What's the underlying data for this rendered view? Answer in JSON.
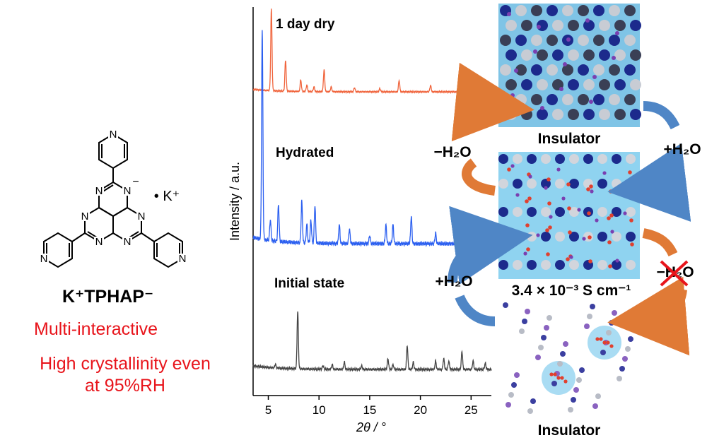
{
  "compound": {
    "name": "K⁺TPHAP⁻",
    "counter_ion": "• K⁺",
    "charge": "−",
    "atom_N": "N"
  },
  "features": {
    "line1": "Multi-interactive",
    "line2a": "High crystallinity even",
    "line2b": "at 95%RH"
  },
  "chart_data": {
    "type": "line",
    "title": "",
    "xlabel": "2θ / °",
    "ylabel": "Intensity / a.u.",
    "xlim": [
      3.5,
      27
    ],
    "xticks": [
      5,
      10,
      15,
      20,
      25
    ],
    "grid": false,
    "series": [
      {
        "name": "1 day dry",
        "color": "#f0643c",
        "peaks": [
          [
            5.3,
            100
          ],
          [
            6.7,
            38
          ],
          [
            8.2,
            14
          ],
          [
            8.8,
            8
          ],
          [
            9.5,
            6
          ],
          [
            10.5,
            27
          ],
          [
            11.2,
            6
          ],
          [
            13.5,
            5
          ],
          [
            16.0,
            4
          ],
          [
            17.9,
            14
          ],
          [
            21.0,
            8
          ],
          [
            24.0,
            4
          ]
        ]
      },
      {
        "name": "Hydrated",
        "color": "#2b5ff0",
        "peaks": [
          [
            4.4,
            100
          ],
          [
            5.2,
            10
          ],
          [
            6.0,
            18
          ],
          [
            8.3,
            20
          ],
          [
            8.8,
            9
          ],
          [
            9.2,
            11
          ],
          [
            9.6,
            18
          ],
          [
            12.0,
            9
          ],
          [
            13.0,
            7
          ],
          [
            15.0,
            4
          ],
          [
            16.6,
            9
          ],
          [
            17.3,
            9
          ],
          [
            19.1,
            13
          ],
          [
            21.5,
            5
          ],
          [
            23.5,
            5
          ]
        ]
      },
      {
        "name": "Initial state",
        "color": "#444444",
        "peaks": [
          [
            5.7,
            3
          ],
          [
            7.9,
            48
          ],
          [
            10.4,
            3
          ],
          [
            11.3,
            4
          ],
          [
            12.5,
            6
          ],
          [
            14.2,
            3
          ],
          [
            16.8,
            9
          ],
          [
            17.3,
            4
          ],
          [
            18.7,
            20
          ],
          [
            19.3,
            6
          ],
          [
            21.5,
            7
          ],
          [
            22.3,
            9
          ],
          [
            22.8,
            7
          ],
          [
            24.1,
            15
          ],
          [
            25.2,
            7
          ],
          [
            26.4,
            5
          ]
        ]
      }
    ]
  },
  "scheme": {
    "insulator_top": "Insulator",
    "insulator_bottom": "Insulator",
    "dehydrate": "−H₂O",
    "hydrate_right": "+H₂O",
    "hydrate_left": "+H₂O",
    "dehydrate_blocked": "−H₂O",
    "conductivity": "3.4 × 10⁻³ S cm⁻¹"
  },
  "colors": {
    "accent_red": "#e8141b",
    "arrow_orange": "#e07a36",
    "arrow_blue": "#4f86c6",
    "water_blue": "#8fd3f0"
  }
}
